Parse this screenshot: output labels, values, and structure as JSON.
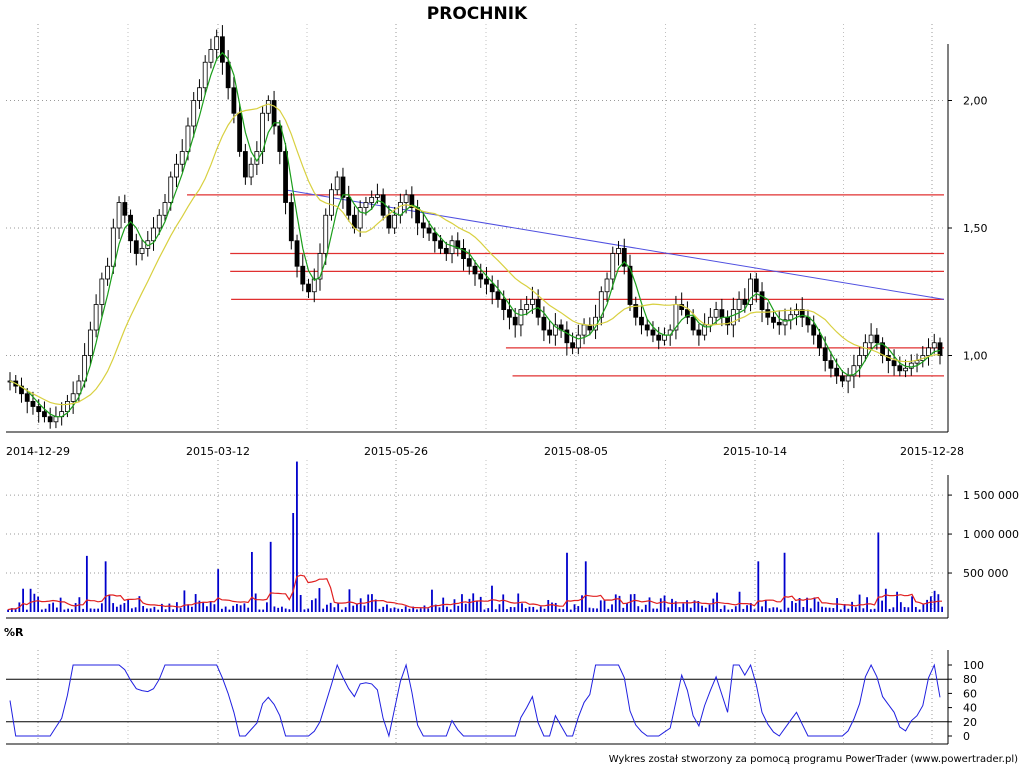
{
  "chart_data": {
    "title": "PROCHNIK",
    "footer": "Wykres został stworzony za pomocą programu PowerTrader (www.powertrader.pl)",
    "x_tick_labels": [
      "2014-12-29",
      "2015-03-12",
      "2015-05-26",
      "2015-08-05",
      "2015-10-14",
      "2015-12-28"
    ],
    "panels": [
      {
        "name": "price",
        "type": "candlestick",
        "y_ticks": [
          1.0,
          1.5,
          2.0
        ],
        "y_tick_labels": [
          "1,00",
          "1,50",
          "2,00"
        ],
        "ylim": [
          0.7,
          2.3
        ],
        "close_approx": [
          0.9,
          0.88,
          0.85,
          0.82,
          0.8,
          0.78,
          0.76,
          0.74,
          0.76,
          0.78,
          0.82,
          0.85,
          0.9,
          1.0,
          1.1,
          1.2,
          1.3,
          1.35,
          1.5,
          1.6,
          1.55,
          1.45,
          1.4,
          1.42,
          1.45,
          1.5,
          1.55,
          1.6,
          1.7,
          1.75,
          1.8,
          1.9,
          2.0,
          2.05,
          2.15,
          2.2,
          2.25,
          2.15,
          2.05,
          1.95,
          1.8,
          1.7,
          1.75,
          1.8,
          1.95,
          2.0,
          1.9,
          1.8,
          1.6,
          1.45,
          1.35,
          1.28,
          1.25,
          1.3,
          1.4,
          1.55,
          1.65,
          1.7,
          1.62,
          1.55,
          1.5,
          1.58,
          1.6,
          1.62,
          1.63,
          1.55,
          1.5,
          1.55,
          1.6,
          1.63,
          1.58,
          1.52,
          1.5,
          1.48,
          1.45,
          1.42,
          1.4,
          1.45,
          1.42,
          1.38,
          1.35,
          1.32,
          1.3,
          1.28,
          1.25,
          1.22,
          1.18,
          1.15,
          1.12,
          1.18,
          1.2,
          1.22,
          1.15,
          1.1,
          1.08,
          1.12,
          1.1,
          1.05,
          1.03,
          1.08,
          1.12,
          1.1,
          1.15,
          1.25,
          1.3,
          1.4,
          1.42,
          1.35,
          1.2,
          1.15,
          1.12,
          1.1,
          1.08,
          1.06,
          1.08,
          1.1,
          1.2,
          1.18,
          1.15,
          1.1,
          1.08,
          1.12,
          1.15,
          1.18,
          1.15,
          1.12,
          1.18,
          1.22,
          1.2,
          1.3,
          1.25,
          1.18,
          1.15,
          1.13,
          1.12,
          1.14,
          1.16,
          1.18,
          1.15,
          1.12,
          1.08,
          1.03,
          0.98,
          0.95,
          0.92,
          0.9,
          0.92,
          0.96,
          1.0,
          1.05,
          1.08,
          1.05,
          1.0,
          0.98,
          0.96,
          0.94,
          0.95,
          0.97,
          0.98,
          1.0,
          1.03,
          1.05,
          1.0
        ],
        "overlays": [
          {
            "name": "",
            "color": "#1a9e1a",
            "role": "short moving average"
          },
          {
            "name": "",
            "color": "#d8d040",
            "role": "long moving average"
          }
        ],
        "support_resistance_lines": [
          {
            "y": 1.63,
            "color": "#e03030"
          },
          {
            "y": 1.4,
            "color": "#e03030"
          },
          {
            "y": 1.33,
            "color": "#e03030"
          },
          {
            "y": 1.22,
            "color": "#e03030"
          },
          {
            "y": 1.03,
            "color": "#e03030"
          },
          {
            "y": 0.92,
            "color": "#e03030"
          }
        ],
        "trend_line": {
          "from": [
            0.297,
            1.65
          ],
          "to": [
            1.0,
            1.22
          ],
          "color": "#5050e0"
        }
      },
      {
        "name": "volume",
        "type": "bar",
        "y_ticks": [
          500000,
          1000000,
          1500000
        ],
        "y_tick_labels": [
          "500 000",
          "1 000 000",
          "1 500 000"
        ],
        "ylim": [
          0,
          1950000
        ],
        "bar_color": "#0000cc",
        "average_color": "#e02020",
        "spikes": [
          {
            "at": 0.083,
            "value": 720000
          },
          {
            "at": 0.105,
            "value": 650000
          },
          {
            "at": 0.225,
            "value": 550000
          },
          {
            "at": 0.262,
            "value": 770000
          },
          {
            "at": 0.282,
            "value": 900000
          },
          {
            "at": 0.31,
            "value": 1930000
          },
          {
            "at": 0.306,
            "value": 1270000
          },
          {
            "at": 0.597,
            "value": 760000
          },
          {
            "at": 0.62,
            "value": 650000
          },
          {
            "at": 0.802,
            "value": 650000
          },
          {
            "at": 0.83,
            "value": 760000
          },
          {
            "at": 0.932,
            "value": 1020000
          }
        ]
      },
      {
        "name": "williams_r",
        "type": "line",
        "label": "%R",
        "y_ticks": [
          0,
          20,
          40,
          60,
          80,
          100
        ],
        "y_tick_labels": [
          "0",
          "20",
          "40",
          "60",
          "80",
          "100"
        ],
        "ylim": [
          0,
          100
        ],
        "reference_lines": [
          20,
          80
        ],
        "line_color": "#2020e0"
      }
    ]
  }
}
